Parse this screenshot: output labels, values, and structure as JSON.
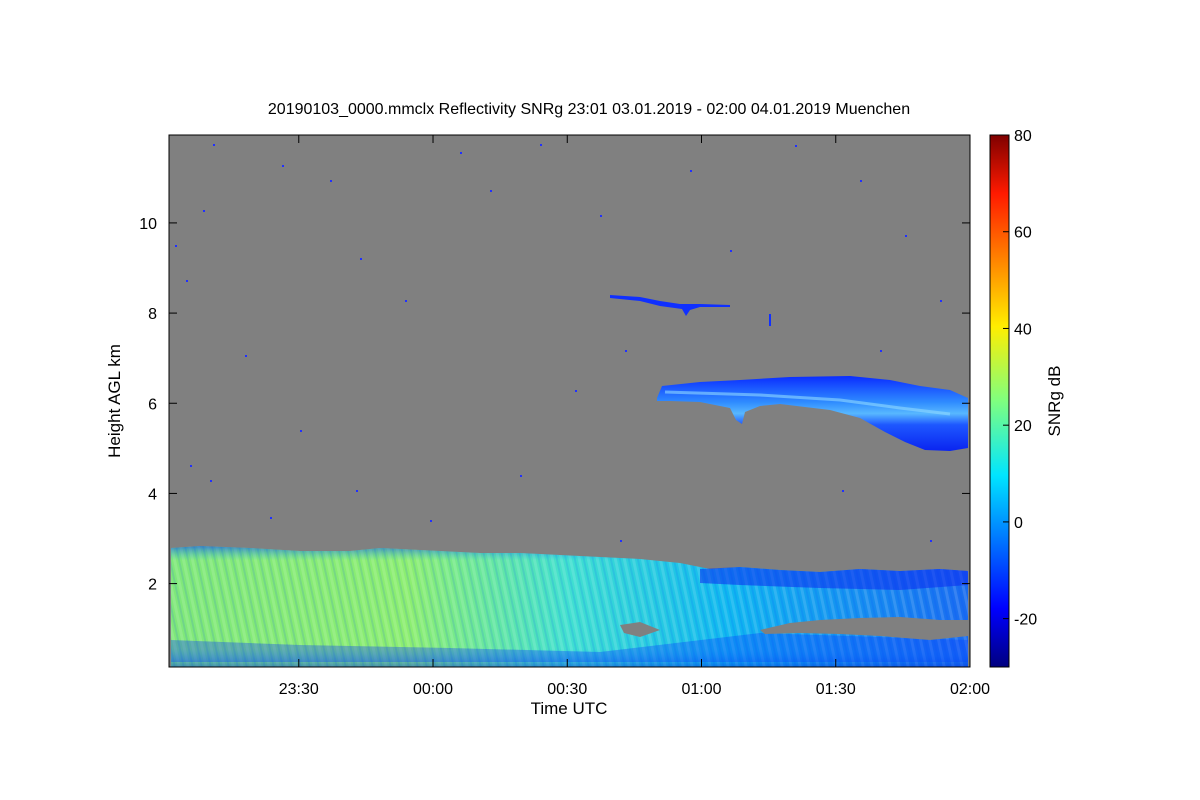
{
  "chart_data": {
    "type": "heatmap",
    "title": "20190103_0000.mmclx Reflectivity SNRg   23:01 03.01.2019 - 02:00 04.01.2019 Muenchen",
    "xlabel": "Time UTC",
    "ylabel": "Height AGL km",
    "colorbar_label": "SNRg dB",
    "x_range": [
      "23:01",
      "02:00"
    ],
    "y_range_km": [
      0.15,
      11.95
    ],
    "x_ticks": [
      {
        "label": "23:30",
        "minutes": 29
      },
      {
        "label": "00:00",
        "minutes": 59
      },
      {
        "label": "00:30",
        "minutes": 89
      },
      {
        "label": "01:00",
        "minutes": 119
      },
      {
        "label": "01:30",
        "minutes": 149
      },
      {
        "label": "02:00",
        "minutes": 179
      }
    ],
    "y_ticks": [
      2,
      4,
      6,
      8,
      10
    ],
    "colorbar_range_db": [
      -30,
      80
    ],
    "colorbar_ticks": [
      -20,
      0,
      20,
      40,
      60,
      80
    ],
    "background_color": "#808080",
    "colormap": "jet",
    "features": [
      {
        "kind": "low cloud / precipitation layer",
        "time_start": "23:01",
        "time_end": "02:00",
        "base_km": 0.15,
        "top_km": 2.8,
        "snr_db_range": [
          -20,
          30
        ]
      },
      {
        "kind": "mid-level cloud layer",
        "time_start": "00:53",
        "time_end": "02:00",
        "base_km": 5.0,
        "top_km": 6.6,
        "snr_db_range": [
          -22,
          5
        ]
      },
      {
        "kind": "thin high layer",
        "time_start": "00:40",
        "time_end": "01:04",
        "base_km": 8.0,
        "top_km": 8.45,
        "snr_db_range": [
          -20,
          -15
        ]
      }
    ]
  }
}
